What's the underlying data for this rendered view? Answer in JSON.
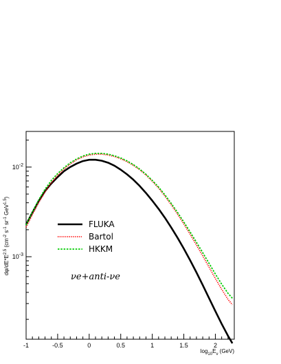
{
  "chart_data": {
    "type": "line",
    "title": "",
    "xlabel": "log10Eν (GeV)",
    "ylabel": "dφ/dE*E^2.5 (cm^-2 s^-1 sr^-1 GeV^1.5)",
    "xlim": [
      -1.0,
      2.3
    ],
    "ylim": [
      0.00012,
      0.025
    ],
    "yscale": "log",
    "grid": false,
    "legend_position": "center-left",
    "x_ticks": [
      -1,
      -0.5,
      0,
      0.5,
      1,
      1.5,
      2
    ],
    "x_tick_labels": [
      "-1",
      "-0.5",
      "0",
      "0.5",
      "1",
      "1.5",
      "2"
    ],
    "y_ticks": [
      0.001,
      0.01
    ],
    "y_tick_labels": [
      "10^-3",
      "10^-2"
    ],
    "series": [
      {
        "name": "FLUKA",
        "color": "#000000",
        "style": "solid",
        "x": [
          -1.0,
          -0.9,
          -0.8,
          -0.7,
          -0.6,
          -0.5,
          -0.4,
          -0.3,
          -0.2,
          -0.1,
          0.0,
          0.1,
          0.2,
          0.3,
          0.4,
          0.5,
          0.6,
          0.7,
          0.8,
          0.9,
          1.0,
          1.1,
          1.2,
          1.3,
          1.4,
          1.5,
          1.6,
          1.7,
          1.8,
          1.9,
          2.0,
          2.1,
          2.2,
          2.27
        ],
        "y": [
          0.00228,
          0.00311,
          0.00418,
          0.0054,
          0.00656,
          0.00775,
          0.00899,
          0.01002,
          0.01093,
          0.01167,
          0.01207,
          0.01207,
          0.01177,
          0.01119,
          0.01036,
          0.00935,
          0.0083,
          0.00723,
          0.00616,
          0.00514,
          0.00422,
          0.00342,
          0.00272,
          0.00212,
          0.00163,
          0.00123,
          0.000913,
          0.000668,
          0.000482,
          0.000345,
          0.000247,
          0.000178,
          0.000131,
          0.000108
        ]
      },
      {
        "name": "Bartol",
        "color": "#ff0000",
        "style": "dotted",
        "x": [
          -1.0,
          -0.9,
          -0.8,
          -0.7,
          -0.6,
          -0.5,
          -0.4,
          -0.3,
          -0.2,
          -0.1,
          0.0,
          0.1,
          0.2,
          0.3,
          0.4,
          0.5,
          0.6,
          0.7,
          0.8,
          0.9,
          1.0,
          1.1,
          1.2,
          1.3,
          1.4,
          1.5,
          1.6,
          1.7,
          1.8,
          1.9,
          2.0,
          2.1,
          2.2,
          2.27
        ],
        "y": [
          0.00213,
          0.00296,
          0.00402,
          0.00528,
          0.00669,
          0.00811,
          0.00949,
          0.01084,
          0.01205,
          0.01299,
          0.01361,
          0.01392,
          0.01394,
          0.01364,
          0.01312,
          0.01238,
          0.01148,
          0.01046,
          0.00935,
          0.00817,
          0.00696,
          0.00584,
          0.00475,
          0.0038,
          0.00299,
          0.00232,
          0.00178,
          0.00135,
          0.00102,
          0.000765,
          0.000571,
          0.000433,
          0.000334,
          0.000291
        ]
      },
      {
        "name": "HKKM",
        "color": "#00cc00",
        "style": "dashed",
        "x": [
          -1.0,
          -0.9,
          -0.8,
          -0.7,
          -0.6,
          -0.5,
          -0.4,
          -0.3,
          -0.2,
          -0.1,
          0.0,
          0.1,
          0.2,
          0.3,
          0.4,
          0.5,
          0.6,
          0.7,
          0.8,
          0.9,
          1.0,
          1.1,
          1.2,
          1.3,
          1.4,
          1.5,
          1.6,
          1.7,
          1.8,
          1.9,
          2.0,
          2.1,
          2.2,
          2.27
        ],
        "y": [
          0.00226,
          0.00315,
          0.00431,
          0.00567,
          0.00709,
          0.00847,
          0.00983,
          0.01116,
          0.01231,
          0.01329,
          0.01394,
          0.01424,
          0.01424,
          0.01394,
          0.01337,
          0.01263,
          0.01172,
          0.01066,
          0.00951,
          0.0083,
          0.0071,
          0.00598,
          0.0049,
          0.00394,
          0.00312,
          0.00244,
          0.00189,
          0.00145,
          0.00111,
          0.000844,
          0.000641,
          0.000494,
          0.000391,
          0.000344
        ]
      }
    ],
    "legend": [
      {
        "label": "FLUKA",
        "series": 0
      },
      {
        "label": "Bartol",
        "series": 1
      },
      {
        "label": "HKKM",
        "series": 2
      }
    ],
    "annotation": "νe+anti-νe"
  }
}
